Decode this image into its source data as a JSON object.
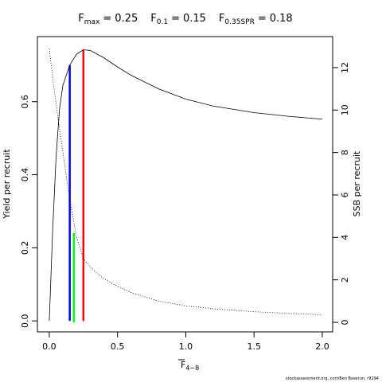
{
  "chart_data": {
    "type": "line",
    "title_items": [
      {
        "symbol": "F",
        "subscript": "max",
        "sign": "=",
        "value": 0.25,
        "color": "#ff0000",
        "y": 0.742
      },
      {
        "symbol": "F",
        "subscript": "0.1",
        "sign": "=",
        "value": 0.15,
        "color": "#0000ff",
        "y": 0.7
      },
      {
        "symbol": "F",
        "subscript": "0.35SPR",
        "sign": "=",
        "value": 0.18,
        "color": "#00ff00",
        "y": 4.2,
        "axis": "y2"
      }
    ],
    "x_label": {
      "symbol": "F",
      "subscript": "4−8"
    },
    "y_label": "Yield per recruit",
    "y2_label": "SSB per recruit",
    "footer": "stockassessment.org, corr/Ben Baserun, r9294",
    "x": [
      0,
      0.025,
      0.05,
      0.075,
      0.1,
      0.15,
      0.2,
      0.25,
      0.3,
      0.4,
      0.5,
      0.6,
      0.8,
      1.0,
      1.2,
      1.5,
      1.75,
      2.0
    ],
    "series": [
      {
        "name": "Yield per recruit",
        "color": "#000000",
        "style": "solid",
        "values": [
          0,
          0.25,
          0.45,
          0.58,
          0.645,
          0.7,
          0.73,
          0.742,
          0.74,
          0.72,
          0.695,
          0.672,
          0.635,
          0.607,
          0.588,
          0.57,
          0.56,
          0.552
        ]
      },
      {
        "name": "SSB per recruit",
        "color": "#000000",
        "style": "dotted",
        "axis": "y2",
        "values": [
          12.9,
          11.5,
          10.3,
          9.1,
          8.0,
          5.8,
          4.0,
          3.0,
          2.6,
          2.05,
          1.7,
          1.4,
          1.0,
          0.78,
          0.64,
          0.5,
          0.42,
          0.36
        ]
      }
    ],
    "xlim": [
      -0.087,
      2.076
    ],
    "xticks": [
      {
        "value": 0,
        "label": "0.0"
      },
      0.5,
      {
        "value": 1,
        "label": "1.0"
      },
      1.5,
      {
        "value": 2,
        "label": "2.0"
      }
    ],
    "ylim": [
      -0.03,
      0.778
    ],
    "yticks": [
      {
        "value": 0,
        "label": "0.0"
      },
      0.2,
      0.4,
      0.6
    ],
    "y2lim": [
      -0.45,
      13.46
    ],
    "y2ticks": [
      0,
      2,
      4,
      6,
      8,
      10,
      12
    ]
  }
}
